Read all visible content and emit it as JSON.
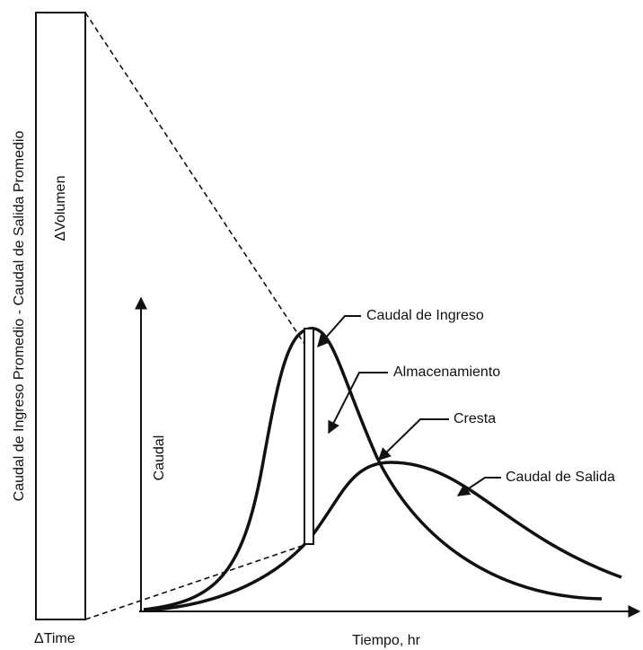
{
  "left_axis_label": "Caudal de Ingreso Promedio - Caudal de Salida Promedio",
  "bar_label": "ΔVolumen",
  "time_label": "ΔTime",
  "x_axis_label": "Tiempo, hr",
  "y_axis_label": "Caudal",
  "annotations": [
    "Caudal de Ingreso",
    "Almacenamiento",
    "Cresta",
    "Caudal de Salida"
  ]
}
